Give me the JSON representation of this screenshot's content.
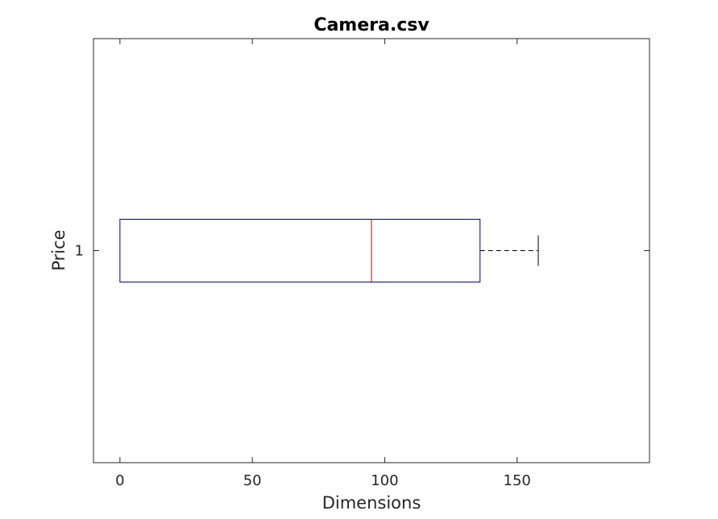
{
  "chart_data": {
    "type": "boxplot",
    "orientation": "horizontal",
    "title": "Camera.csv",
    "xlabel": "Dimensions",
    "ylabel": "Price",
    "xlim": [
      -10,
      200
    ],
    "x_ticks": [
      0,
      50,
      100,
      150
    ],
    "y_ticks": [
      "1"
    ],
    "grid": false,
    "series": [
      {
        "category": "1",
        "min": 0,
        "q1": 0,
        "median": 95,
        "q3": 136,
        "max": 158
      }
    ],
    "colors": {
      "box": "#00008b",
      "median": "#cc0000",
      "whisker": "#000000"
    }
  }
}
